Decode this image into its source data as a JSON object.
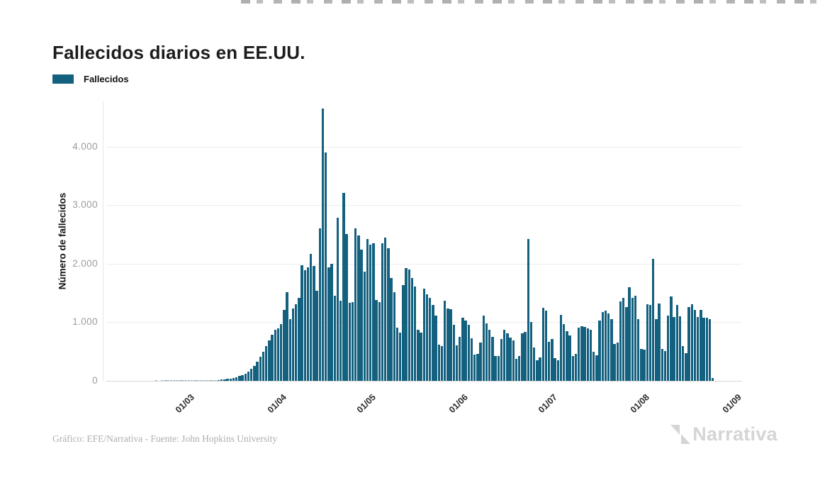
{
  "page": {
    "title": "Fallecidos diarios en EE.UU."
  },
  "legend": {
    "label": "Fallecidos",
    "color": "#14607F"
  },
  "footer": {
    "credit": "Gráfico: EFE/Narrativa - Fuente: John Hopkins University",
    "brand": "Narrativa"
  },
  "colors": {
    "bar": "#14607F",
    "grid": "#ECECEC",
    "axis_text": "#9B9B9B",
    "title_text": "#1C1C1C",
    "credit_text": "#AEAEAE",
    "brand_text": "#D5D5D5"
  },
  "chart_data": {
    "type": "bar",
    "title": "Fallecidos diarios en EE.UU.",
    "series_name": "Fallecidos",
    "xlabel": "",
    "ylabel": "Número de fallecidos",
    "grid": "horizontal",
    "legend_position": "top-left",
    "bar_color": "#14607F",
    "ylim": [
      0,
      4812
    ],
    "yticks": [
      {
        "label": "0",
        "value": 0
      },
      {
        "label": "1.000",
        "value": 1000
      },
      {
        "label": "2.000",
        "value": 2000
      },
      {
        "label": "3.000",
        "value": 3000
      },
      {
        "label": "4.000",
        "value": 4000
      }
    ],
    "xticks": [
      {
        "label": "01/03",
        "day_offset": 19
      },
      {
        "label": "01/04",
        "day_offset": 50
      },
      {
        "label": "01/05",
        "day_offset": 80
      },
      {
        "label": "01/06",
        "day_offset": 111
      },
      {
        "label": "01/07",
        "day_offset": 141
      },
      {
        "label": "01/08",
        "day_offset": 172
      },
      {
        "label": "01/09",
        "day_offset": 203
      }
    ],
    "x_unit": "day",
    "values": [
      0,
      0,
      0,
      0,
      0,
      0,
      0,
      0,
      1,
      0,
      1,
      1,
      1,
      1,
      2,
      1,
      2,
      2,
      3,
      3,
      3,
      4,
      4,
      5,
      6,
      7,
      9,
      11,
      14,
      17,
      21,
      26,
      33,
      42,
      53,
      65,
      80,
      100,
      125,
      160,
      205,
      260,
      330,
      410,
      500,
      590,
      690,
      790,
      870,
      900,
      970,
      1212,
      1515,
      1055,
      1236,
      1310,
      1420,
      1970,
      1890,
      1940,
      2170,
      1964,
      1540,
      2606,
      4655,
      3905,
      1945,
      2000,
      1460,
      2788,
      1370,
      3212,
      2510,
      1335,
      1340,
      2610,
      2485,
      2245,
      1870,
      2430,
      2330,
      2355,
      1380,
      1340,
      2350,
      2450,
      2270,
      1760,
      1510,
      910,
      830,
      1640,
      1930,
      1900,
      1760,
      1610,
      870,
      820,
      1570,
      1480,
      1420,
      1300,
      1120,
      620,
      600,
      1365,
      1240,
      1224,
      954,
      610,
      751,
      1075,
      1030,
      960,
      730,
      450,
      460,
      660,
      1115,
      985,
      870,
      750,
      420,
      430,
      720,
      870,
      815,
      735,
      690,
      375,
      430,
      815,
      835,
      2430,
      1010,
      565,
      355,
      405,
      1250,
      1196,
      670,
      711,
      388,
      350,
      1127,
      975,
      850,
      775,
      420,
      460,
      910,
      930,
      925,
      895,
      870,
      500,
      440,
      1035,
      1180,
      1195,
      1150,
      1050,
      630,
      660,
      1360,
      1420,
      1265,
      1600,
      1418,
      1450,
      1055,
      550,
      535,
      1305,
      1295,
      2085,
      1055,
      1320,
      545,
      515,
      1115,
      1440,
      1095,
      1297,
      1105,
      590,
      470,
      1257,
      1305,
      1216,
      1090,
      1216,
      1085,
      1075,
      1060,
      50
    ]
  }
}
